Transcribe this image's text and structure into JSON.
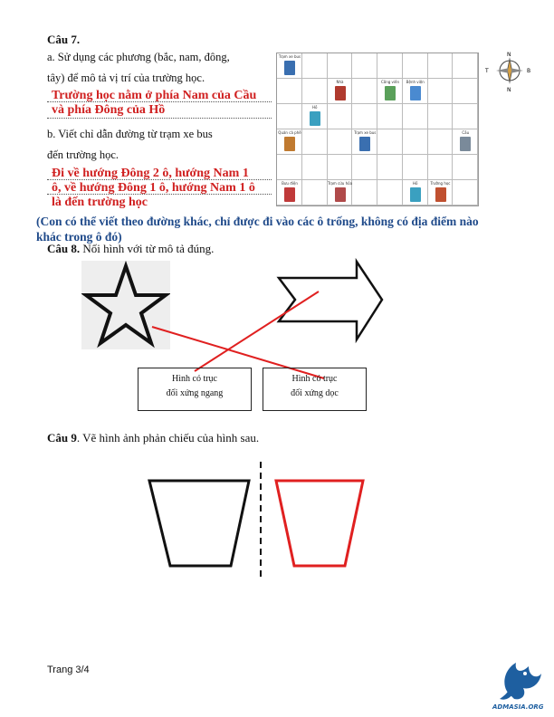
{
  "q7": {
    "title": "Câu 7.",
    "a_line1": "a. Sử dụng các phương (bắc, nam, đông,",
    "a_line2": "tây) để mô tả vị trí của trường học.",
    "a_answer1": "Trường học nằm ở phía Nam của Cầu",
    "a_answer2": "và phía Đông của Hồ",
    "b_line1": "b. Viết chỉ dẫn đường từ trạm xe bus",
    "b_line2": "đến trường học.",
    "b_answer1": "Đi về hướng Đông 2 ô, hướng Nam 1",
    "b_answer2": "ô, về hướng Đông 1 ô, hướng Nam 1 ô",
    "b_answer3": "là đến trường học",
    "note_line1": "(Con có thể viết theo đường khác, chỉ được đi vào các ô trống, không có địa điểm nào",
    "note_line2": "khác trong ô đó)",
    "compass": {
      "north": "N",
      "south": "N",
      "east": "B",
      "west": "T"
    },
    "map_places": [
      {
        "label": "Trạm xe bus"
      },
      {
        "label": "Nhà"
      },
      {
        "label": "Công viên"
      },
      {
        "label": "Bệnh viện"
      },
      {
        "label": "Hồ"
      },
      {
        "label": "Quán cà phê"
      },
      {
        "label": "Trạm xe bus"
      },
      {
        "label": "Cầu"
      },
      {
        "label": "Bưu điện"
      },
      {
        "label": "Trạm cứu hỏa"
      },
      {
        "label": "Hồ"
      },
      {
        "label": "Trường học"
      }
    ]
  },
  "q8": {
    "title": "Câu 8.",
    "instruction": "Nối hình với từ mô tả đúng.",
    "box_left_line1": "Hình có trục",
    "box_left_line2": "đối xứng ngang",
    "box_right_line1": "Hình có trục",
    "box_right_line2": "đối xứng dọc"
  },
  "q9": {
    "title": "Câu 9",
    "instruction": ". Vẽ hình ảnh phản chiếu của hình sau."
  },
  "footer": {
    "page": "Trang 3/4",
    "logo_text": "ADMASIA.ORG"
  },
  "colors": {
    "answer": "#d02020",
    "note": "#1f4a8a",
    "lines": "#e02020"
  }
}
